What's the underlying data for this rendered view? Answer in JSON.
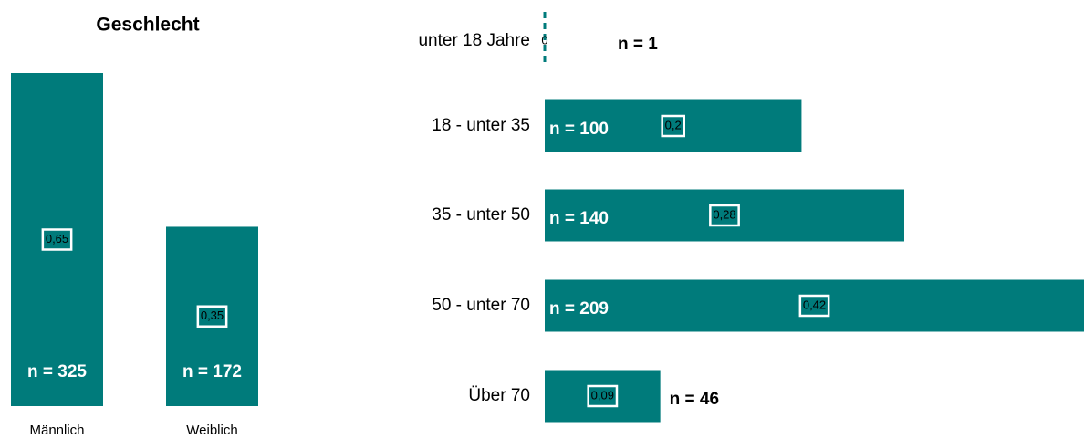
{
  "chart_data": [
    {
      "type": "bar",
      "orientation": "vertical",
      "title": "Geschlecht",
      "categories": [
        "Männlich",
        "Weiblich"
      ],
      "values": [
        0.65,
        0.35
      ],
      "value_labels": [
        "0,65",
        "0,35"
      ],
      "n_labels": [
        "n = 325",
        "n = 172"
      ],
      "color": "#007b7b"
    },
    {
      "type": "bar",
      "orientation": "horizontal",
      "categories": [
        "unter 18 Jahre",
        "18 - unter 35",
        "35 - unter 50",
        "50 - unter 70",
        "Über 70"
      ],
      "values": [
        0,
        0.2,
        0.28,
        0.42,
        0.09
      ],
      "value_labels": [
        "0",
        "0,2",
        "0,28",
        "0,42",
        "0,09"
      ],
      "n_labels": [
        "n = 1",
        "n = 100",
        "n = 140",
        "n = 209",
        "n = 46"
      ],
      "color": "#007b7b"
    }
  ]
}
